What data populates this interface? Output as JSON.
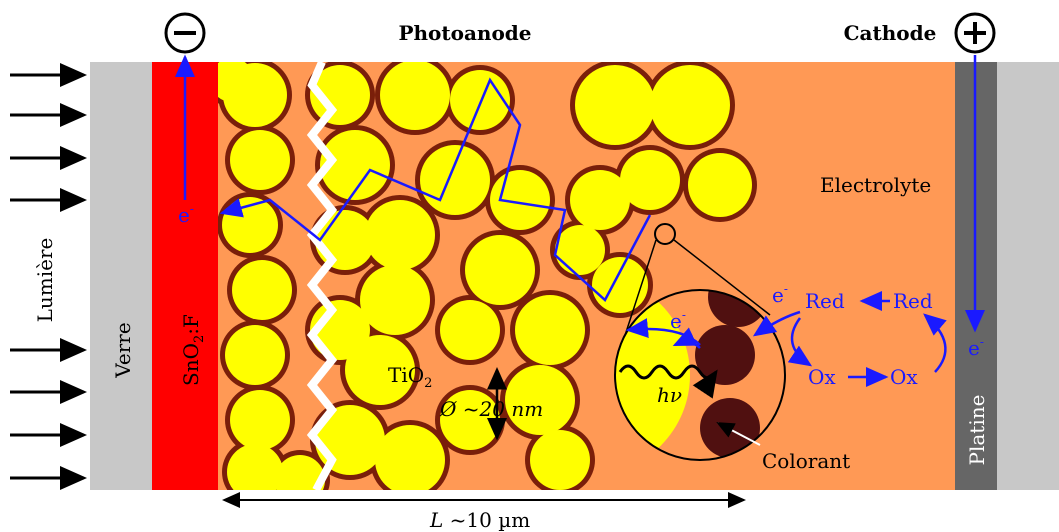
{
  "header": {
    "left_title": "Photoanode",
    "right_title": "Cathode"
  },
  "labels": {
    "light": "Lumière",
    "glass": "Verre",
    "tco": {
      "base": "SnO",
      "sub": "2",
      "rest": ":F"
    },
    "tio2": {
      "base": "TiO",
      "sub": "2"
    },
    "diameter": "Ø ~20 nm",
    "electrolyte": "Electrolyte",
    "platinum": "Platine",
    "photon": "hν",
    "dye": "Colorant",
    "length": {
      "symbol": "L",
      "value": " ~10 µm"
    }
  },
  "species": {
    "red_1": "Red",
    "red_2": "Red",
    "ox_1": "Ox",
    "ox_2": "Ox"
  },
  "electrons": [
    {
      "base": "e",
      "sup": "-"
    },
    {
      "base": "e",
      "sup": "-"
    },
    {
      "base": "e",
      "sup": "-"
    },
    {
      "base": "e",
      "sup": "-"
    }
  ]
}
